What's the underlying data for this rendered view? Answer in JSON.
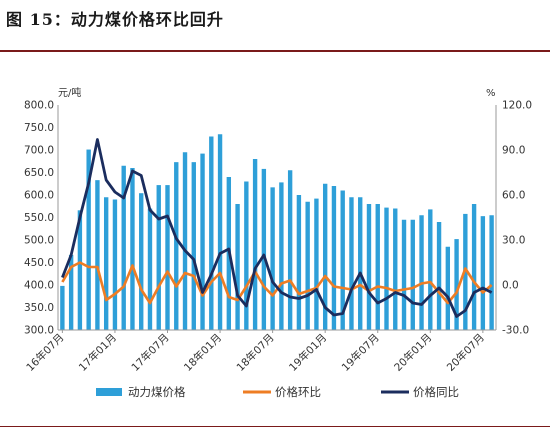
{
  "figure_title": "图 15：动力煤价格环比回升",
  "chart_data": {
    "type": "bar",
    "title": "图 15：动力煤价格环比回升",
    "left_axis_unit": "元/吨",
    "right_axis_unit": "%",
    "left_ylim": [
      300,
      800
    ],
    "left_ticks": [
      "300.0",
      "350.0",
      "400.0",
      "450.0",
      "500.0",
      "550.0",
      "600.0",
      "650.0",
      "700.0",
      "750.0",
      "800.0"
    ],
    "right_ylim": [
      -30,
      120
    ],
    "right_ticks": [
      "-30.0",
      "0.0",
      "30.0",
      "60.0",
      "90.0",
      "120.0"
    ],
    "x_tick_labels": [
      "16年07月",
      "17年01月",
      "17年07月",
      "18年01月",
      "18年07月",
      "19年01月",
      "19年07月",
      "20年01月",
      "20年07月"
    ],
    "x_tick_positions": [
      0,
      6,
      12,
      18,
      24,
      30,
      36,
      42,
      48
    ],
    "grid": false,
    "legend_position": "bottom",
    "colors": {
      "bar": "#2e9fd8",
      "mom": "#ee7d24",
      "yoy": "#1b2d5e"
    },
    "series": [
      {
        "name": "动力煤价格",
        "kind": "bar",
        "axis": "left",
        "values": [
          398,
          467,
          566,
          701,
          633,
          595,
          590,
          665,
          660,
          604,
          570,
          622,
          622,
          673,
          695,
          673,
          692,
          730,
          735,
          640,
          580,
          630,
          680,
          658,
          617,
          628,
          655,
          600,
          585,
          592,
          625,
          620,
          610,
          595,
          595,
          580,
          580,
          572,
          570,
          545,
          545,
          555,
          568,
          540,
          485,
          502,
          558,
          580,
          553,
          555
        ]
      },
      {
        "name": "价格环比",
        "kind": "line",
        "axis": "right",
        "values": [
          2,
          12,
          15,
          12,
          12,
          -10,
          -6,
          -1,
          13,
          -3,
          -12,
          -1,
          9,
          -1,
          8,
          6,
          -7,
          2,
          8,
          -8,
          -10,
          -1,
          9,
          -1,
          -7,
          1,
          3,
          -6,
          -4,
          -2,
          6,
          -1,
          -2,
          -3,
          0,
          -4,
          -1,
          -2,
          -4,
          -3,
          -2,
          1,
          2,
          -5,
          -12,
          -5,
          11,
          2,
          -5,
          0
        ]
      },
      {
        "name": "价格同比",
        "kind": "line",
        "axis": "right",
        "values": [
          5,
          20,
          45,
          68,
          97,
          70,
          62,
          58,
          76,
          73,
          50,
          44,
          46,
          31,
          23,
          17,
          -5,
          7,
          21,
          24,
          -7,
          -14,
          11,
          20,
          2,
          -5,
          -8,
          -9,
          -7,
          -3,
          -15,
          -20,
          -19,
          -3,
          8,
          -5,
          -12,
          -9,
          -5,
          -7,
          -12,
          -13,
          -7,
          -2,
          -8,
          -21,
          -17,
          -5,
          -2,
          -5
        ]
      }
    ]
  }
}
